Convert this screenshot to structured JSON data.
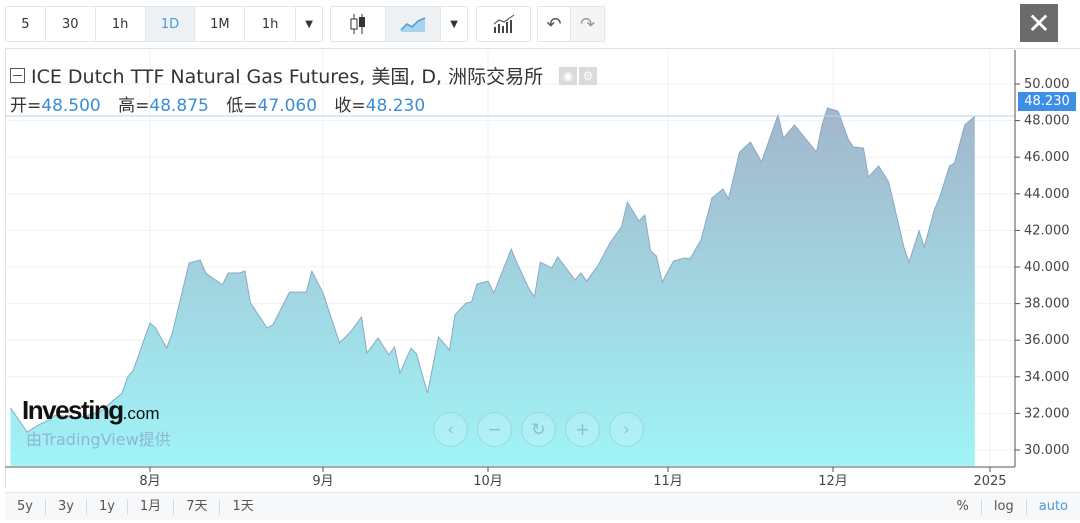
{
  "toolbar": {
    "intervals": [
      "5",
      "30",
      "1h",
      "1D",
      "1M",
      "1h"
    ],
    "active_interval": "1D",
    "icons": [
      "chevron-down-icon",
      "candlestick-icon",
      "area-chart-icon",
      "chevron-down-icon",
      "indicators-icon",
      "undo-icon",
      "redo-icon"
    ],
    "close_label": "✕"
  },
  "legend": {
    "title": "ICE Dutch TTF Natural Gas Futures, 美国, D, 洲际交易所",
    "open_label": "开=",
    "open": "48.500",
    "high_label": "高=",
    "high": "48.875",
    "low_label": "低=",
    "low": "47.060",
    "close_label": "收=",
    "close": "48.230"
  },
  "last_price": "48.230",
  "watermark": {
    "brand": "Investing",
    "brand_suffix": ".com",
    "credit": "由TradingView提供"
  },
  "nav": [
    "‹",
    "−",
    "↻",
    "+",
    "›"
  ],
  "bottom": {
    "ranges": [
      "5y",
      "3y",
      "1y",
      "1月",
      "7天",
      "1天"
    ],
    "scale_options": [
      "%",
      "log",
      "auto"
    ],
    "active_scale": "auto"
  },
  "colors": {
    "accent": "#3d8ee6",
    "area_top": "#a3b6cb",
    "area_bottom": "#a0f4f7",
    "line": "#8aa9c4"
  },
  "chart_data": {
    "type": "area",
    "title": "",
    "xlabel": "",
    "ylabel": "",
    "ylim": [
      29,
      51
    ],
    "grid": true,
    "x_ticks": [
      "8月",
      "9月",
      "10月",
      "11月",
      "12月",
      "2025"
    ],
    "y_ticks": [
      "30.000",
      "32.000",
      "34.000",
      "36.000",
      "38.000",
      "40.000",
      "42.000",
      "44.000",
      "46.000",
      "48.000",
      "50.000"
    ],
    "points": [
      [
        "2024-07-07",
        32.3
      ],
      [
        "2024-07-10",
        30.98
      ],
      [
        "2024-07-12",
        31.37
      ],
      [
        "2024-07-14",
        31.64
      ],
      [
        "2024-07-15",
        31.91
      ],
      [
        "2024-07-19",
        31.75
      ],
      [
        "2024-07-23",
        32.08
      ],
      [
        "2024-07-27",
        33.11
      ],
      [
        "2024-07-28",
        33.99
      ],
      [
        "2024-07-29",
        34.37
      ],
      [
        "2024-08-01",
        36.94
      ],
      [
        "2024-08-02",
        36.67
      ],
      [
        "2024-08-04",
        35.57
      ],
      [
        "2024-08-05",
        36.39
      ],
      [
        "2024-08-08",
        40.22
      ],
      [
        "2024-08-10",
        40.38
      ],
      [
        "2024-08-11",
        39.67
      ],
      [
        "2024-08-12",
        39.45
      ],
      [
        "2024-08-14",
        39.02
      ],
      [
        "2024-08-15",
        39.67
      ],
      [
        "2024-08-17",
        39.67
      ],
      [
        "2024-08-18",
        39.78
      ],
      [
        "2024-08-19",
        38.03
      ],
      [
        "2024-08-22",
        36.67
      ],
      [
        "2024-08-23",
        36.83
      ],
      [
        "2024-08-26",
        38.63
      ],
      [
        "2024-08-29",
        38.63
      ],
      [
        "2024-08-30",
        39.78
      ],
      [
        "2024-09-01",
        38.58
      ],
      [
        "2024-09-04",
        35.85
      ],
      [
        "2024-09-06",
        36.45
      ],
      [
        "2024-09-08",
        37.27
      ],
      [
        "2024-09-09",
        35.3
      ],
      [
        "2024-09-11",
        36.12
      ],
      [
        "2024-09-13",
        35.19
      ],
      [
        "2024-09-14",
        35.63
      ],
      [
        "2024-09-15",
        34.21
      ],
      [
        "2024-09-17",
        35.57
      ],
      [
        "2024-09-18",
        35.25
      ],
      [
        "2024-09-20",
        33.11
      ],
      [
        "2024-09-22",
        36.17
      ],
      [
        "2024-09-24",
        35.46
      ],
      [
        "2024-09-25",
        37.38
      ],
      [
        "2024-09-27",
        38.03
      ],
      [
        "2024-09-28",
        38.09
      ],
      [
        "2024-09-29",
        39.07
      ],
      [
        "2024-10-01",
        39.23
      ],
      [
        "2024-10-02",
        38.58
      ],
      [
        "2024-10-05",
        40.98
      ],
      [
        "2024-10-06",
        40.22
      ],
      [
        "2024-10-08",
        38.85
      ],
      [
        "2024-10-09",
        38.36
      ],
      [
        "2024-10-10",
        40.27
      ],
      [
        "2024-10-12",
        39.95
      ],
      [
        "2024-10-13",
        40.55
      ],
      [
        "2024-10-16",
        39.29
      ],
      [
        "2024-10-17",
        39.67
      ],
      [
        "2024-10-18",
        39.23
      ],
      [
        "2024-10-20",
        40.11
      ],
      [
        "2024-10-22",
        41.31
      ],
      [
        "2024-10-24",
        42.19
      ],
      [
        "2024-10-25",
        43.55
      ],
      [
        "2024-10-27",
        42.51
      ],
      [
        "2024-10-28",
        42.84
      ],
      [
        "2024-10-29",
        40.87
      ],
      [
        "2024-10-30",
        40.6
      ],
      [
        "2024-10-31",
        39.18
      ],
      [
        "2024-11-02",
        40.33
      ],
      [
        "2024-11-04",
        40.49
      ],
      [
        "2024-11-05",
        40.44
      ],
      [
        "2024-11-07",
        41.48
      ],
      [
        "2024-11-09",
        43.77
      ],
      [
        "2024-11-11",
        44.26
      ],
      [
        "2024-11-12",
        43.72
      ],
      [
        "2024-11-14",
        46.28
      ],
      [
        "2024-11-16",
        46.83
      ],
      [
        "2024-11-18",
        45.74
      ],
      [
        "2024-11-21",
        48.31
      ],
      [
        "2024-11-22",
        47.05
      ],
      [
        "2024-11-24",
        47.76
      ],
      [
        "2024-11-28",
        46.28
      ],
      [
        "2024-11-29",
        47.76
      ],
      [
        "2024-11-30",
        48.69
      ],
      [
        "2024-12-02",
        48.52
      ],
      [
        "2024-12-04",
        46.99
      ],
      [
        "2024-12-05",
        46.56
      ],
      [
        "2024-12-07",
        46.5
      ],
      [
        "2024-12-08",
        44.92
      ],
      [
        "2024-12-10",
        45.52
      ],
      [
        "2024-12-12",
        44.64
      ],
      [
        "2024-12-15",
        41.09
      ],
      [
        "2024-12-16",
        40.27
      ],
      [
        "2024-12-18",
        41.97
      ],
      [
        "2024-12-19",
        41.09
      ],
      [
        "2024-12-21",
        43.11
      ],
      [
        "2024-12-22",
        43.77
      ],
      [
        "2024-12-24",
        45.52
      ],
      [
        "2024-12-25",
        45.68
      ],
      [
        "2024-12-27",
        47.76
      ],
      [
        "2024-12-29",
        48.23
      ]
    ]
  }
}
